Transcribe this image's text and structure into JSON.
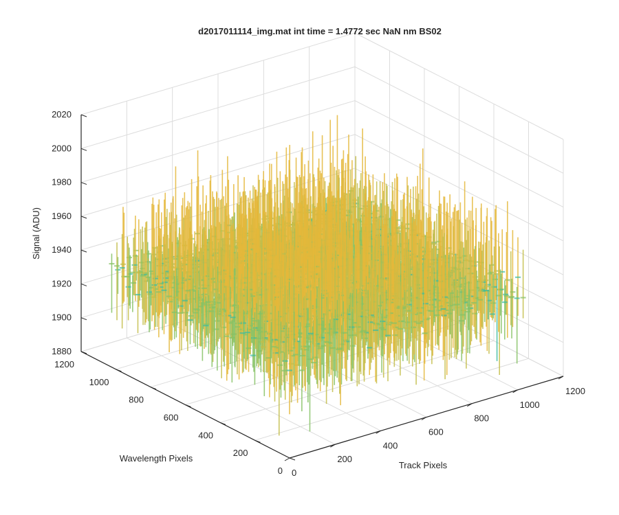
{
  "chart_data": {
    "type": "surface",
    "title": "d2017011114_img.mat int time = 1.4772 sec  NaN nm BS02",
    "xlabel": "Track Pixels",
    "ylabel": "Wavelength Pixels",
    "zlabel": "Signal (ADU)",
    "xlim": [
      0,
      1200
    ],
    "ylim": [
      0,
      1200
    ],
    "zlim": [
      1880,
      2020
    ],
    "x_ticks": [
      "0",
      "200",
      "400",
      "600",
      "800",
      "1000",
      "1200"
    ],
    "y_ticks": [
      "0",
      "200",
      "400",
      "600",
      "800",
      "1000",
      "1200"
    ],
    "z_ticks": [
      "1880",
      "1900",
      "1920",
      "1940",
      "1960",
      "1980",
      "2000",
      "2020"
    ],
    "grid": true,
    "colormap": [
      "#0f8fcc",
      "#19a9c7",
      "#3cbaa0",
      "#86c265",
      "#c3bd49",
      "#e4b73a"
    ],
    "surface": {
      "x_extent": [
        0,
        1024
      ],
      "y_extent": [
        0,
        1024
      ],
      "z_mean": 1935,
      "z_min": 1885,
      "z_max": 2010
    }
  }
}
